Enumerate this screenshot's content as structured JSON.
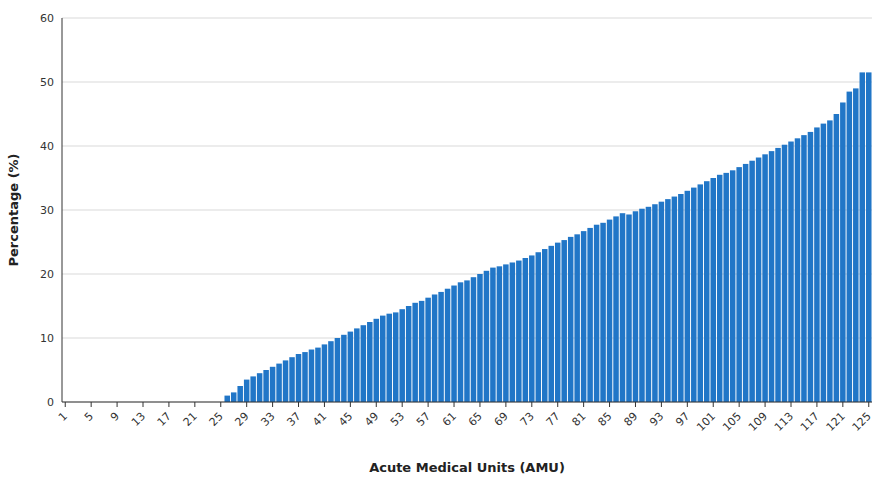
{
  "chart_data": {
    "type": "bar",
    "xlabel": "Acute Medical Units (AMU)",
    "ylabel": "Percentage (%)",
    "color": "#2176c7",
    "ylim": [
      0,
      60
    ],
    "yticks": [
      0,
      10,
      20,
      30,
      40,
      50,
      60
    ],
    "grid": true,
    "categories": [
      "1",
      null,
      null,
      null,
      "5",
      null,
      null,
      null,
      "9",
      null,
      null,
      null,
      "13",
      null,
      null,
      null,
      "17",
      null,
      null,
      null,
      "21",
      null,
      null,
      null,
      "25",
      null,
      null,
      null,
      "29",
      null,
      null,
      null,
      "33",
      null,
      null,
      null,
      "37",
      null,
      null,
      null,
      "41",
      null,
      null,
      null,
      "45",
      null,
      null,
      null,
      "49",
      null,
      null,
      null,
      "53",
      null,
      null,
      null,
      "57",
      null,
      null,
      null,
      "61",
      null,
      null,
      null,
      "65",
      null,
      null,
      null,
      "69",
      null,
      null,
      null,
      "73",
      null,
      null,
      null,
      "77",
      null,
      null,
      null,
      "81",
      null,
      null,
      null,
      "85",
      null,
      null,
      null,
      "89",
      null,
      null,
      null,
      "93",
      null,
      null,
      null,
      "97",
      null,
      null,
      null,
      "101",
      null,
      null,
      null,
      "105",
      null,
      null,
      null,
      "109",
      null,
      null,
      null,
      "113",
      null,
      null,
      null,
      "117",
      null,
      null,
      null,
      "121",
      null,
      null,
      null,
      "125"
    ],
    "values": [
      0.0,
      0.0,
      0.0,
      0.0,
      0.0,
      0.0,
      0.0,
      0.0,
      0.0,
      0.0,
      0.0,
      0.0,
      0.0,
      0.0,
      0.0,
      0.0,
      0.0,
      0.0,
      0.0,
      0.0,
      0.0,
      0.0,
      0.0,
      0.0,
      0.0,
      1.0,
      1.5,
      2.5,
      3.5,
      4.0,
      4.5,
      5.0,
      5.5,
      6.0,
      6.5,
      7.0,
      7.5,
      7.8,
      8.2,
      8.5,
      9.0,
      9.5,
      10.0,
      10.5,
      11.0,
      11.5,
      12.0,
      12.5,
      13.0,
      13.5,
      13.8,
      14.0,
      14.5,
      15.0,
      15.5,
      15.8,
      16.3,
      16.8,
      17.2,
      17.7,
      18.2,
      18.7,
      19.0,
      19.5,
      20.0,
      20.5,
      21.0,
      21.2,
      21.5,
      21.8,
      22.1,
      22.5,
      22.9,
      23.4,
      23.9,
      24.4,
      24.9,
      25.3,
      25.8,
      26.2,
      26.7,
      27.2,
      27.7,
      28.0,
      28.5,
      29.0,
      29.5,
      29.3,
      29.8,
      30.2,
      30.5,
      30.9,
      31.3,
      31.7,
      32.1,
      32.5,
      33.0,
      33.5,
      34.0,
      34.5,
      35.0,
      35.5,
      35.8,
      36.2,
      36.7,
      37.2,
      37.7,
      38.2,
      38.7,
      39.2,
      39.7,
      40.2,
      40.7,
      41.2,
      41.7,
      42.2,
      42.9,
      43.5,
      44.0,
      45.0,
      46.8,
      48.5,
      49.0,
      51.5,
      51.5
    ]
  }
}
